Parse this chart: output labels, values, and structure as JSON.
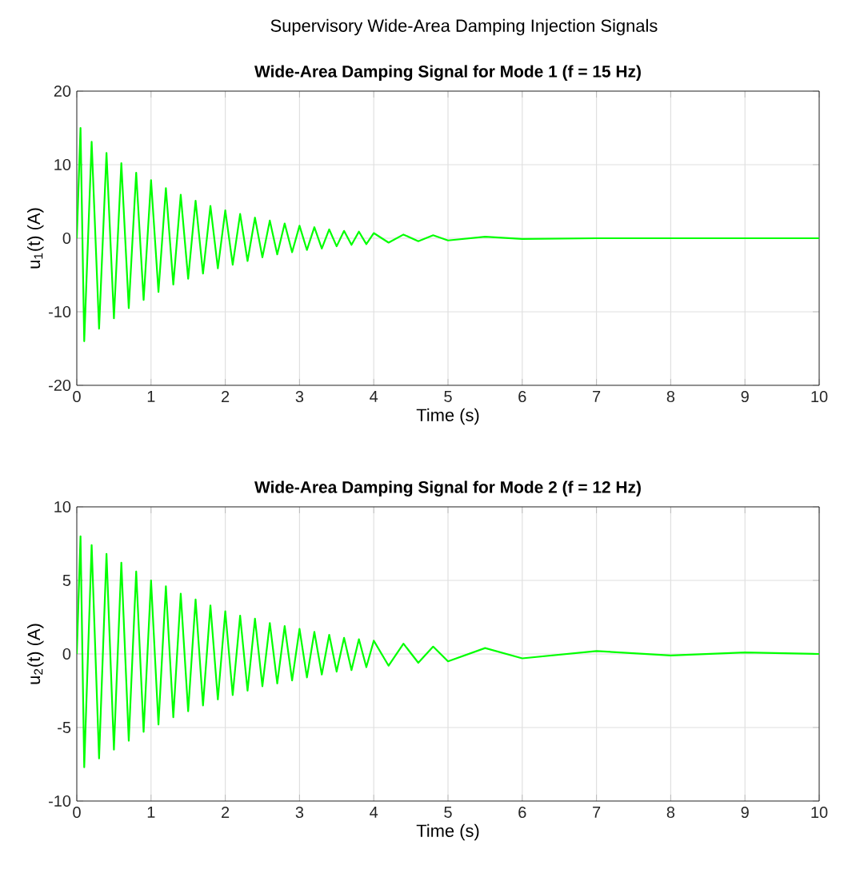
{
  "chart_data": [
    {
      "type": "line",
      "title": "Wide-Area Damping Signal for Mode 1 (f = 15 Hz)",
      "xlabel": "Time (s)",
      "ylabel": "u$_{1}$(t) (A)",
      "annotations": [
        "Supervisory Wide-Area Damping Injection Signals"
      ],
      "x": [
        0,
        0.05,
        0.1,
        0.2,
        0.3,
        0.4,
        0.5,
        0.6,
        0.7,
        0.8,
        0.9,
        1.0,
        1.1,
        1.2,
        1.3,
        1.4,
        1.5,
        1.6,
        1.7,
        1.8,
        1.9,
        2.0,
        2.1,
        2.2,
        2.3,
        2.4,
        2.5,
        2.6,
        2.7,
        2.8,
        2.9,
        3.0,
        3.1,
        3.2,
        3.3,
        3.4,
        3.5,
        3.6,
        3.7,
        3.8,
        3.9,
        4.0,
        4.2,
        4.4,
        4.6,
        4.8,
        5,
        5.5,
        6,
        7,
        8,
        9,
        10
      ],
      "series": [
        {
          "color": "#00ff00",
          "values": [
            0,
            15,
            -14,
            13.1,
            -12.3,
            11.6,
            -10.9,
            10.2,
            -9.5,
            8.9,
            -8.4,
            7.9,
            -7.3,
            6.8,
            -6.3,
            5.9,
            -5.5,
            5.1,
            -4.8,
            4.4,
            -4.1,
            3.8,
            -3.6,
            3.3,
            -3.1,
            2.8,
            -2.6,
            2.4,
            -2.2,
            2.0,
            -1.9,
            1.7,
            -1.6,
            1.5,
            -1.4,
            1.2,
            -1.1,
            1.0,
            -0.9,
            0.9,
            -0.8,
            0.7,
            -0.6,
            0.5,
            -0.4,
            0.4,
            -0.3,
            0.2,
            -0.1,
            0,
            0,
            0,
            0
          ]
        }
      ],
      "xlim": [
        0,
        10
      ],
      "xticks": [
        0,
        1,
        2,
        3,
        4,
        5,
        6,
        7,
        8,
        9,
        10
      ],
      "ylim": [
        -20,
        20
      ],
      "yticks": [
        -20,
        -10,
        0,
        10,
        20
      ],
      "grid": true
    },
    {
      "type": "line",
      "title": "Wide-Area Damping Signal for Mode 2 (f = 12 Hz)",
      "xlabel": "Time (s)",
      "ylabel": "u$_{2}$(t) (A)",
      "x": [
        0,
        0.05,
        0.1,
        0.2,
        0.3,
        0.4,
        0.5,
        0.6,
        0.7,
        0.8,
        0.9,
        1.0,
        1.1,
        1.2,
        1.3,
        1.4,
        1.5,
        1.6,
        1.7,
        1.8,
        1.9,
        2.0,
        2.1,
        2.2,
        2.3,
        2.4,
        2.5,
        2.6,
        2.7,
        2.8,
        2.9,
        3.0,
        3.1,
        3.2,
        3.3,
        3.4,
        3.5,
        3.6,
        3.7,
        3.8,
        3.9,
        4.0,
        4.2,
        4.4,
        4.6,
        4.8,
        5,
        5.5,
        6,
        7,
        8,
        9,
        10
      ],
      "series": [
        {
          "color": "#00ff00",
          "values": [
            0,
            8,
            -7.7,
            7.4,
            -7.1,
            6.8,
            -6.5,
            6.2,
            -5.9,
            5.6,
            -5.3,
            5.0,
            -4.8,
            4.6,
            -4.3,
            4.1,
            -3.9,
            3.7,
            -3.5,
            3.3,
            -3.1,
            2.9,
            -2.8,
            2.6,
            -2.5,
            2.4,
            -2.2,
            2.1,
            -2.0,
            1.9,
            -1.8,
            1.7,
            -1.6,
            1.5,
            -1.4,
            1.3,
            -1.2,
            1.1,
            -1.1,
            1.0,
            -0.9,
            0.9,
            -0.8,
            0.7,
            -0.6,
            0.5,
            -0.5,
            0.4,
            -0.3,
            0.2,
            -0.1,
            0.1,
            0
          ]
        }
      ],
      "xlim": [
        0,
        10
      ],
      "xticks": [
        0,
        1,
        2,
        3,
        4,
        5,
        6,
        7,
        8,
        9,
        10
      ],
      "ylim": [
        -10,
        10
      ],
      "yticks": [
        -10,
        -5,
        0,
        5,
        10
      ],
      "grid": true
    }
  ]
}
